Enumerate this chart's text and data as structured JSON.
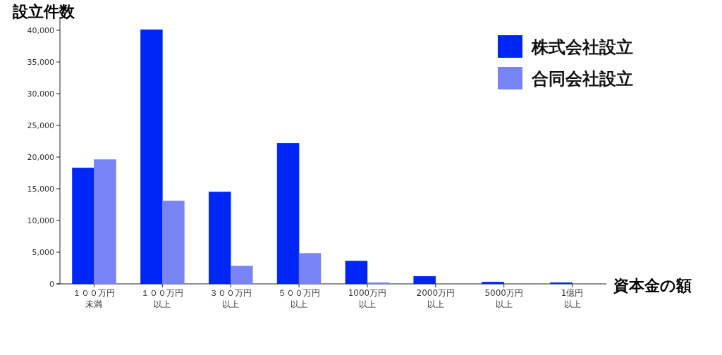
{
  "chart_data": {
    "type": "bar",
    "title": "設立件数",
    "xlabel": "資本金の額",
    "categories": [
      "１００万円未満",
      "１００万円以上",
      "３００万円以上",
      "５００万円以上",
      "1000万円以上",
      "2000万円以上",
      "5000万円以上",
      "1億円以上"
    ],
    "series": [
      {
        "name": "株式会社設立",
        "color": "#0026f5",
        "values": [
          18300,
          40100,
          14500,
          22200,
          3600,
          1200,
          300,
          200
        ]
      },
      {
        "name": "合同会社設立",
        "color": "#7884f5",
        "values": [
          19600,
          13100,
          2800,
          4800,
          200,
          null,
          null,
          null
        ]
      }
    ],
    "ylim": [
      0,
      42000
    ],
    "yticks": [
      {
        "value": 0,
        "label": "0"
      },
      {
        "value": 5000,
        "label": "5,000"
      },
      {
        "value": 10000,
        "label": "10,000"
      },
      {
        "value": 15000,
        "label": "15,000"
      },
      {
        "value": 20000,
        "label": "20,000"
      },
      {
        "value": 25000,
        "label": "25,000"
      },
      {
        "value": 30000,
        "label": "30,000"
      },
      {
        "value": 35000,
        "label": "35,000"
      },
      {
        "value": 40000,
        "label": "40,000"
      }
    ],
    "grid": false,
    "legend": "top right"
  }
}
